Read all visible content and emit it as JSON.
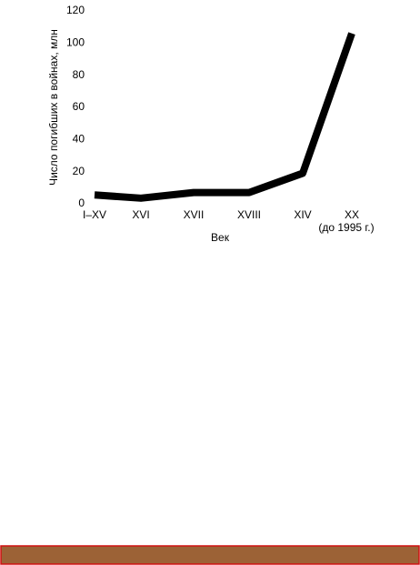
{
  "chart_data": {
    "type": "line",
    "y_label": "Число погибших в войнах, млн",
    "x_label": "Век",
    "categories": [
      "I–XV",
      "XVI",
      "XVII",
      "XVIII",
      "XIV",
      "XX"
    ],
    "category_note": "(до 1995 г.)",
    "values": [
      5.5,
      3.5,
      7,
      7,
      19,
      106
    ],
    "color": "#000000",
    "ylim": [
      0,
      120
    ],
    "yticks": [
      0,
      20,
      40,
      60,
      80,
      100,
      120
    ],
    "grid": false
  }
}
